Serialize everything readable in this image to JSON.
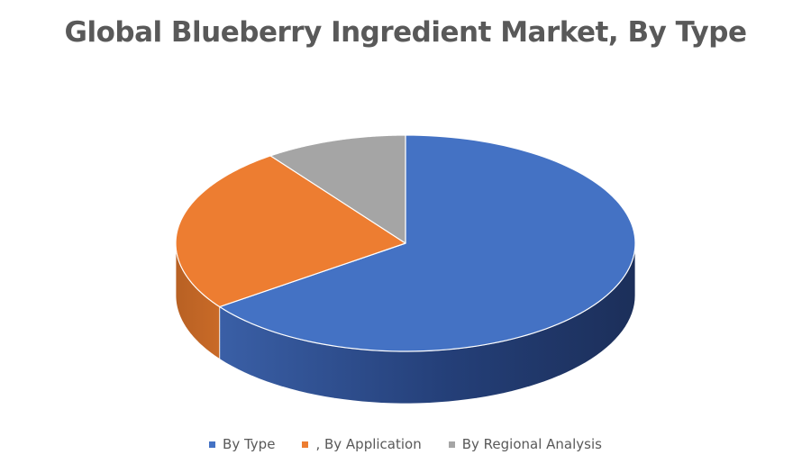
{
  "chart_data": {
    "type": "pie",
    "title": "Global Blueberry Ingredient Market, By Type",
    "categories": [
      "By Type",
      ", By Application",
      "By Regional Analysis"
    ],
    "values": [
      65,
      25,
      10
    ],
    "colors": [
      "#4472c4",
      "#ed7d31",
      "#a5a5a5"
    ],
    "side_colors": [
      "#2b4a85",
      "#a8561f",
      "#6f6f6f"
    ],
    "legend_position": "bottom",
    "style": "3d"
  }
}
